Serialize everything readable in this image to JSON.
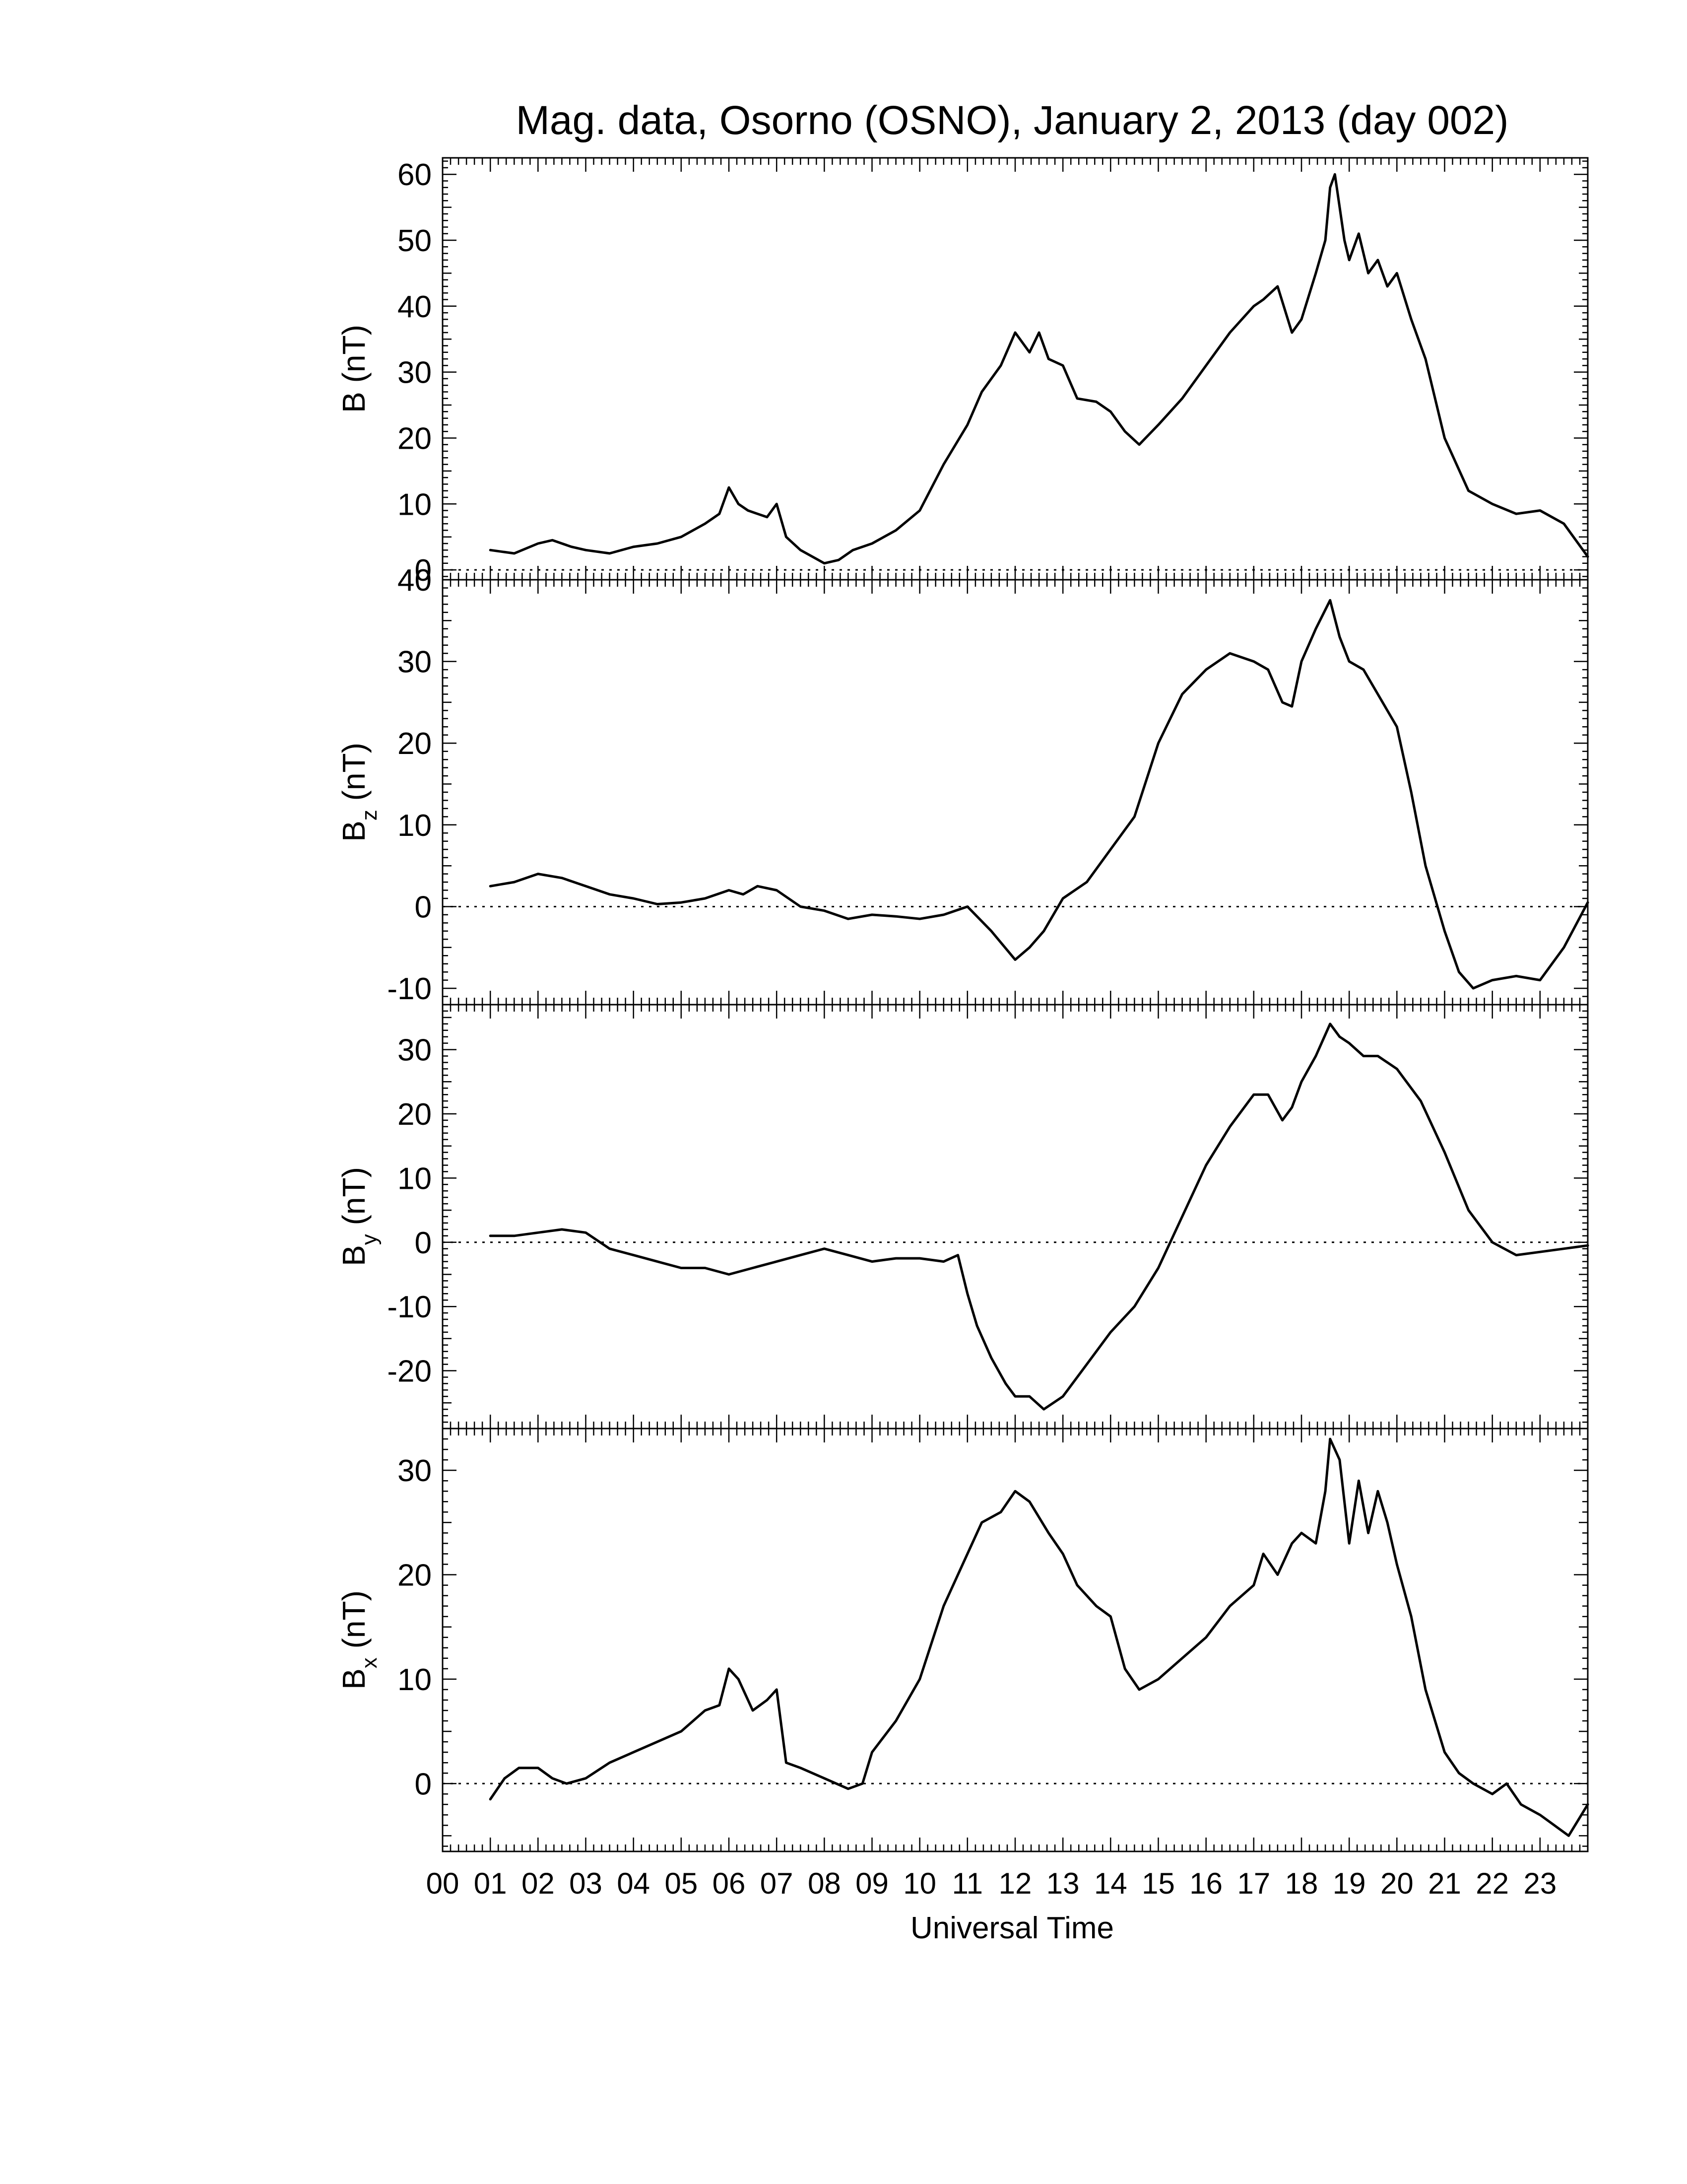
{
  "title": "Mag. data, Osorno (OSNO), January 2, 2013 (day 002)",
  "xlabel": "Universal Time",
  "x_tick_labels": [
    "00",
    "01",
    "02",
    "03",
    "04",
    "05",
    "06",
    "07",
    "08",
    "09",
    "10",
    "11",
    "12",
    "13",
    "14",
    "15",
    "16",
    "17",
    "18",
    "19",
    "20",
    "21",
    "22",
    "23"
  ],
  "colors": {
    "line": "#000000",
    "zero_line": "#000000",
    "background": "#ffffff"
  },
  "chart_data": [
    {
      "type": "line",
      "panel": "B",
      "ylabel": "B (nT)",
      "ylabel_main": "B",
      "ylabel_sub": "",
      "ylabel_unit": " (nT)",
      "xlim": [
        0,
        24
      ],
      "ylim": [
        -1.5,
        62.5
      ],
      "yticks": [
        0,
        10,
        20,
        30,
        40,
        50,
        60
      ],
      "zero_line": true,
      "x": [
        1.0,
        1.5,
        2.0,
        2.3,
        2.7,
        3.0,
        3.5,
        4.0,
        4.5,
        5.0,
        5.5,
        5.8,
        6.0,
        6.2,
        6.4,
        6.6,
        6.8,
        7.0,
        7.2,
        7.5,
        8.0,
        8.3,
        8.6,
        9.0,
        9.5,
        10.0,
        10.5,
        11.0,
        11.3,
        11.7,
        12.0,
        12.3,
        12.5,
        12.7,
        13.0,
        13.3,
        13.7,
        14.0,
        14.3,
        14.6,
        15.0,
        15.5,
        16.0,
        16.5,
        17.0,
        17.2,
        17.5,
        17.8,
        18.0,
        18.3,
        18.5,
        18.6,
        18.7,
        18.9,
        19.0,
        19.2,
        19.4,
        19.6,
        19.8,
        20.0,
        20.3,
        20.6,
        21.0,
        21.5,
        22.0,
        22.5,
        23.0,
        23.5,
        24.0
      ],
      "values": [
        3,
        2.5,
        4,
        4.5,
        3.5,
        3,
        2.5,
        3.5,
        4,
        5,
        7,
        8.5,
        12.5,
        10,
        9,
        8.5,
        8,
        10,
        5,
        3,
        1,
        1.5,
        3,
        4,
        6,
        9,
        16,
        22,
        27,
        31,
        36,
        33,
        36,
        32,
        31,
        26,
        25.5,
        24,
        21,
        19,
        22,
        26,
        31,
        36,
        40,
        41,
        43,
        36,
        38,
        45,
        50,
        58,
        60,
        50,
        47,
        51,
        45,
        47,
        43,
        45,
        38,
        32,
        20,
        12,
        10,
        8.5,
        9,
        7,
        2
      ]
    },
    {
      "type": "line",
      "panel": "Bz",
      "ylabel": "Bz (nT)",
      "ylabel_main": "B",
      "ylabel_sub": "z",
      "ylabel_unit": " (nT)",
      "xlim": [
        0,
        24
      ],
      "ylim": [
        -12,
        40
      ],
      "yticks": [
        -10,
        0,
        10,
        20,
        30,
        40
      ],
      "zero_line": true,
      "x": [
        1.0,
        1.5,
        2.0,
        2.5,
        3.0,
        3.5,
        4.0,
        4.5,
        5.0,
        5.5,
        6.0,
        6.3,
        6.6,
        7.0,
        7.5,
        8.0,
        8.5,
        9.0,
        9.5,
        10.0,
        10.5,
        11.0,
        11.5,
        12.0,
        12.3,
        12.6,
        13.0,
        13.5,
        14.0,
        14.5,
        15.0,
        15.5,
        16.0,
        16.5,
        17.0,
        17.3,
        17.6,
        17.8,
        18.0,
        18.3,
        18.6,
        18.8,
        19.0,
        19.3,
        19.6,
        20.0,
        20.3,
        20.6,
        21.0,
        21.3,
        21.6,
        22.0,
        22.5,
        23.0,
        23.5,
        24.0
      ],
      "values": [
        2.5,
        3,
        4,
        3.5,
        2.5,
        1.5,
        1,
        0.3,
        0.5,
        1,
        2,
        1.5,
        2.5,
        2,
        0,
        -0.5,
        -1.5,
        -1,
        -1.2,
        -1.5,
        -1,
        0,
        -3,
        -6.5,
        -5,
        -3,
        1,
        3,
        7,
        11,
        20,
        26,
        29,
        31,
        30,
        29,
        25,
        24.5,
        30,
        34,
        37.5,
        33,
        30,
        29,
        26,
        22,
        14,
        5,
        -3,
        -8,
        -10,
        -9,
        -8.5,
        -9,
        -5,
        0.5
      ]
    },
    {
      "type": "line",
      "panel": "By",
      "ylabel": "By (nT)",
      "ylabel_main": "B",
      "ylabel_sub": "y",
      "ylabel_unit": " (nT)",
      "xlim": [
        0,
        24
      ],
      "ylim": [
        -29,
        37
      ],
      "yticks": [
        -20,
        -10,
        0,
        10,
        20,
        30
      ],
      "zero_line": true,
      "x": [
        1.0,
        1.5,
        2.0,
        2.5,
        3.0,
        3.5,
        4.0,
        4.5,
        5.0,
        5.5,
        6.0,
        6.5,
        7.0,
        7.5,
        8.0,
        8.5,
        9.0,
        9.5,
        10.0,
        10.5,
        10.8,
        11.0,
        11.2,
        11.5,
        11.8,
        12.0,
        12.3,
        12.6,
        13.0,
        13.5,
        14.0,
        14.5,
        15.0,
        15.5,
        16.0,
        16.5,
        17.0,
        17.3,
        17.6,
        17.8,
        18.0,
        18.3,
        18.6,
        18.8,
        19.0,
        19.3,
        19.6,
        20.0,
        20.5,
        21.0,
        21.5,
        22.0,
        22.5,
        23.0,
        23.5,
        24.0
      ],
      "values": [
        1,
        1,
        1.5,
        2,
        1.5,
        -1,
        -2,
        -3,
        -4,
        -4,
        -5,
        -4,
        -3,
        -2,
        -1,
        -2,
        -3,
        -2.5,
        -2.5,
        -3,
        -2,
        -8,
        -13,
        -18,
        -22,
        -24,
        -24,
        -26,
        -24,
        -19,
        -14,
        -10,
        -4,
        4,
        12,
        18,
        23,
        23,
        19,
        21,
        25,
        29,
        34,
        32,
        31,
        29,
        29,
        27,
        22,
        14,
        5,
        0,
        -2,
        -1.5,
        -1,
        -0.5
      ]
    },
    {
      "type": "line",
      "panel": "Bx",
      "ylabel": "Bx (nT)",
      "ylabel_main": "B",
      "ylabel_sub": "x",
      "ylabel_unit": " (nT)",
      "xlim": [
        0,
        24
      ],
      "ylim": [
        -6.5,
        34
      ],
      "yticks": [
        0,
        10,
        20,
        30
      ],
      "zero_line": true,
      "x": [
        1.0,
        1.3,
        1.6,
        2.0,
        2.3,
        2.6,
        3.0,
        3.5,
        4.0,
        4.5,
        5.0,
        5.5,
        5.8,
        6.0,
        6.2,
        6.5,
        6.8,
        7.0,
        7.2,
        7.5,
        8.0,
        8.5,
        8.8,
        9.0,
        9.5,
        10.0,
        10.5,
        11.0,
        11.3,
        11.7,
        12.0,
        12.3,
        12.7,
        13.0,
        13.3,
        13.7,
        14.0,
        14.3,
        14.6,
        15.0,
        15.5,
        16.0,
        16.5,
        17.0,
        17.2,
        17.5,
        17.8,
        18.0,
        18.3,
        18.5,
        18.6,
        18.8,
        19.0,
        19.2,
        19.4,
        19.6,
        19.8,
        20.0,
        20.3,
        20.6,
        21.0,
        21.3,
        21.6,
        22.0,
        22.3,
        22.6,
        23.0,
        23.3,
        23.6,
        24.0
      ],
      "values": [
        -1.5,
        0.5,
        1.5,
        1.5,
        0.5,
        0,
        0.5,
        2,
        3,
        4,
        5,
        7,
        7.5,
        11,
        10,
        7,
        8,
        9,
        2,
        1.5,
        0.5,
        -0.5,
        0,
        3,
        6,
        10,
        17,
        22,
        25,
        26,
        28,
        27,
        24,
        22,
        19,
        17,
        16,
        11,
        9,
        10,
        12,
        14,
        17,
        19,
        22,
        20,
        23,
        24,
        23,
        28,
        33,
        31,
        23,
        29,
        24,
        28,
        25,
        21,
        16,
        9,
        3,
        1,
        0,
        -1,
        0,
        -2,
        -3,
        -4,
        -5,
        -2
      ]
    }
  ]
}
